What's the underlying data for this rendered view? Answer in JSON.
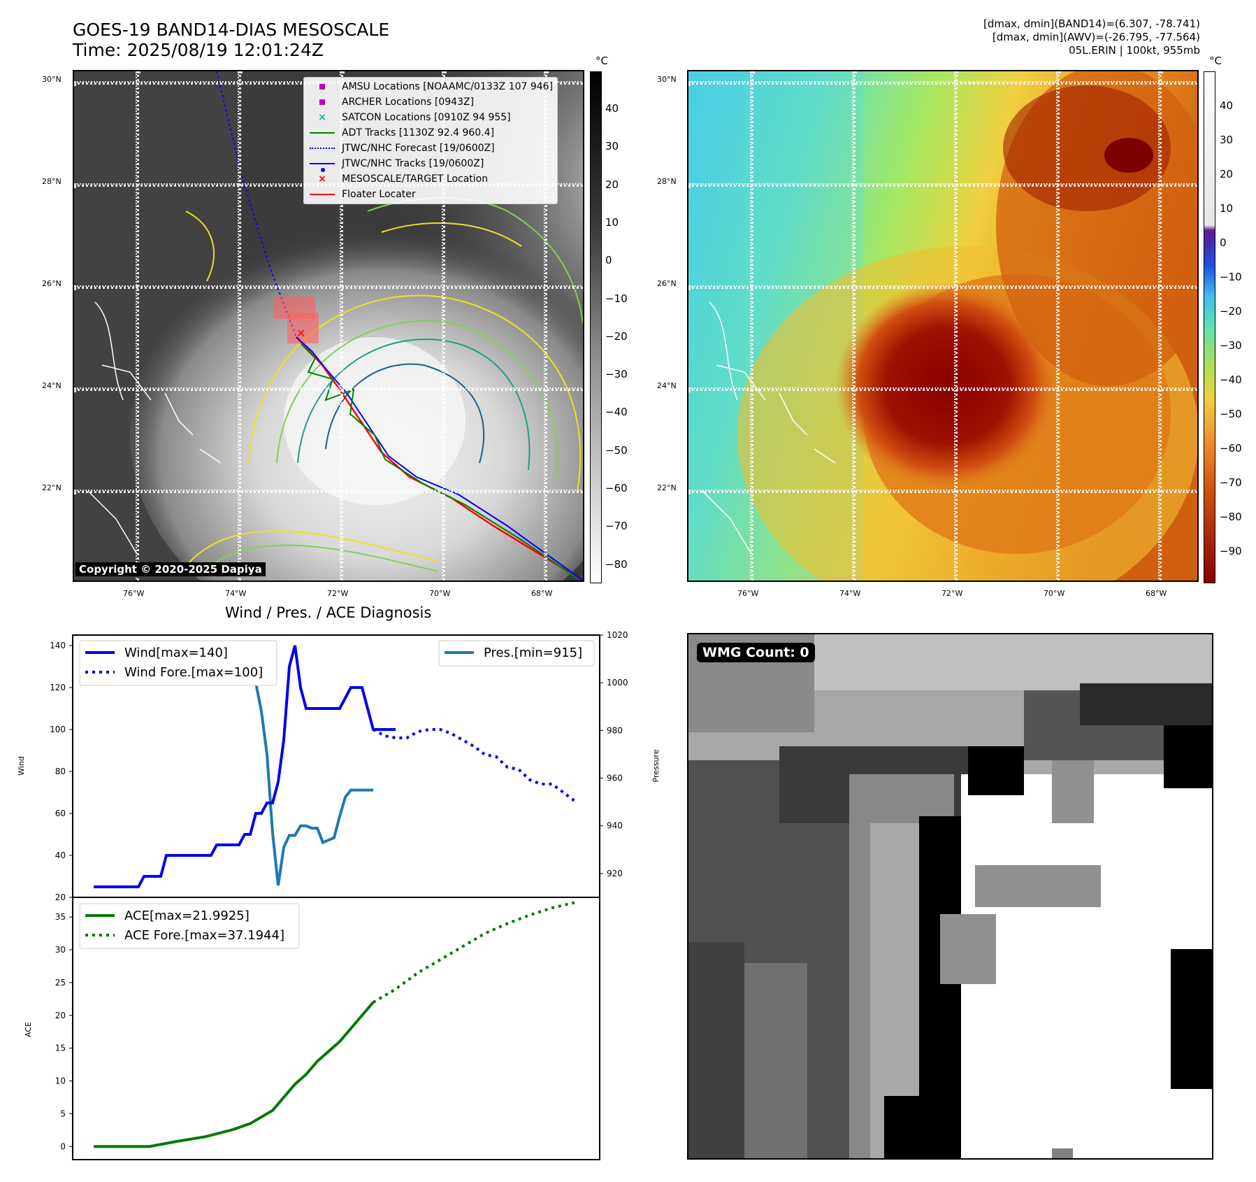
{
  "header": {
    "title_line1": "GOES-19 BAND14-DIAS MESOSCALE",
    "title_line2": "Time: 2025/08/19 12:01:24Z",
    "right_line1": "[dmax, dmin](BAND14)=(6.307, -78.741)",
    "right_line2": "[dmax, dmin](AWV)=(-26.795, -77.564)",
    "right_line3": "05L.ERIN | 100kt, 955mb"
  },
  "map": {
    "lat_labels": [
      "30°N",
      "28°N",
      "26°N",
      "24°N",
      "22°N"
    ],
    "lon_labels": [
      "76°W",
      "74°W",
      "72°W",
      "70°W",
      "68°W"
    ],
    "copyright": "Copyright © 2020-2025 Dapiya",
    "unit": "°C"
  },
  "ir_colorbar": {
    "ticks": [
      "40",
      "30",
      "20",
      "10",
      "0",
      "−10",
      "−20",
      "−30",
      "−40",
      "−50",
      "−60",
      "−70",
      "−80"
    ]
  },
  "wv_colorbar": {
    "ticks": [
      "40",
      "30",
      "20",
      "10",
      "0",
      "−10",
      "−20",
      "−30",
      "−40",
      "−50",
      "−60",
      "−70",
      "−80",
      "−90"
    ]
  },
  "map_legend": {
    "items": [
      {
        "label": "AMSU Locations [NOAAMC/0133Z 107 946]",
        "icon": "magenta-square",
        "color": "#c000c0"
      },
      {
        "label": "ARCHER Locations [0943Z]",
        "icon": "magenta-square",
        "color": "#c000c0"
      },
      {
        "label": "SATCON Locations [0910Z 94 955]",
        "icon": "teal-x",
        "color": "#1ab0a8"
      },
      {
        "label": "ADT Tracks [1130Z 92.4 960.4]",
        "icon": "green-line",
        "color": "#008000"
      },
      {
        "label": "JTWC/NHC Forecast [19/0600Z]",
        "icon": "blue-dotted-line",
        "color": "#0000ff"
      },
      {
        "label": "JTWC/NHC Tracks [19/0600Z]",
        "icon": "blue-dot-line",
        "color": "#0000ff"
      },
      {
        "label": "MESOSCALE/TARGET Location",
        "icon": "red-x",
        "color": "#ff0000"
      },
      {
        "label": "Floater Locater",
        "icon": "red-line",
        "color": "#ff0000"
      }
    ]
  },
  "diagnosis": {
    "title": "Wind / Pres. / ACE Diagnosis",
    "wind_legend": [
      "Wind[max=140]",
      "Wind Fore.[max=100]"
    ],
    "pres_legend": "Pres.[min=915]",
    "ace_legend": [
      "ACE[max=21.9925]",
      "ACE Fore.[max=37.1944]"
    ],
    "wind_ylabel": "Wind",
    "pres_ylabel": "Pressure",
    "ace_ylabel": "ACE",
    "wind_ticks": [
      "140",
      "120",
      "100",
      "80",
      "60",
      "40",
      "20"
    ],
    "pres_ticks": [
      "1020",
      "1000",
      "980",
      "960",
      "940",
      "920"
    ],
    "ace_ticks": [
      "35",
      "30",
      "25",
      "20",
      "15",
      "10",
      "5",
      "0"
    ]
  },
  "wmg": {
    "label": "WMG Count: 0"
  },
  "colors": {
    "wind": "#0000ee",
    "pressure": "#1f77b4",
    "ace": "#007a00"
  },
  "chart_data": [
    {
      "type": "line",
      "title": "",
      "xlabel": "",
      "ylabel": "Wind",
      "ylim": [
        20,
        145
      ],
      "series": [
        {
          "name": "Wind[max=140]",
          "x": [
            0,
            1,
            2,
            3,
            4,
            5,
            6,
            7,
            8,
            9,
            10,
            11,
            12,
            13,
            14,
            15,
            16,
            17,
            18,
            19,
            20,
            21,
            22,
            23,
            24,
            25,
            26,
            27,
            28,
            29,
            30,
            31,
            32,
            33,
            34,
            35,
            36,
            37,
            38,
            39,
            40,
            41,
            42,
            43,
            44,
            45,
            46,
            47,
            48,
            49,
            50,
            51,
            52,
            53,
            54
          ],
          "y": [
            25,
            25,
            25,
            25,
            25,
            25,
            25,
            25,
            25,
            30,
            30,
            30,
            30,
            40,
            40,
            40,
            40,
            40,
            40,
            40,
            40,
            40,
            45,
            45,
            45,
            45,
            45,
            50,
            50,
            60,
            60,
            65,
            65,
            75,
            95,
            130,
            140,
            120,
            110,
            110,
            110,
            110,
            110,
            110,
            110,
            115,
            120,
            120,
            120,
            110,
            100,
            100,
            100,
            100,
            100
          ]
        },
        {
          "name": "Wind Fore.[max=100]",
          "x": [
            50,
            52,
            54,
            56,
            58,
            60,
            62,
            64,
            66,
            68,
            70,
            72,
            74,
            76,
            78,
            80,
            82,
            84,
            86
          ],
          "y": [
            100,
            97,
            96,
            96,
            99,
            100,
            100,
            98,
            95,
            92,
            88,
            87,
            82,
            81,
            76,
            74,
            74,
            70,
            66
          ]
        },
        {
          "name": "Pres.[min=915]",
          "axis": "right",
          "x": [
            0,
            1,
            2,
            3,
            4,
            5,
            6,
            7,
            8,
            9,
            10,
            11,
            12,
            13,
            14,
            15,
            16,
            17,
            18,
            19,
            20,
            21,
            22,
            23,
            24,
            25,
            26,
            27,
            28,
            29,
            30,
            31,
            32,
            33,
            34,
            35,
            36,
            37,
            38,
            39,
            40,
            41,
            42,
            43,
            44,
            45,
            46,
            47,
            48,
            49,
            50
          ],
          "y": [
            1014,
            1014,
            1011,
            1010,
            1010,
            1010,
            1009,
            1009,
            1009,
            1009,
            1008,
            1008,
            1008,
            1007,
            1007,
            1007,
            1007,
            1006,
            1006,
            1006,
            1006,
            1006,
            1006,
            1004,
            1004,
            1004,
            1004,
            1004,
            1004,
            1000,
            988,
            970,
            937,
            915,
            931,
            936,
            936,
            940,
            940,
            939,
            939,
            933,
            934,
            935,
            944,
            952,
            955,
            955,
            955,
            955,
            955
          ]
        }
      ],
      "pres_ylim": [
        910,
        1020
      ]
    },
    {
      "type": "line",
      "title": "",
      "xlabel": "",
      "ylabel": "ACE",
      "ylim": [
        -2,
        38
      ],
      "series": [
        {
          "name": "ACE[max=21.9925]",
          "x": [
            0,
            5,
            10,
            15,
            20,
            25,
            28,
            30,
            32,
            34,
            36,
            38,
            40,
            42,
            44,
            46,
            48,
            50
          ],
          "y": [
            0,
            0,
            0,
            0.8,
            1.5,
            2.6,
            3.5,
            4.5,
            5.5,
            7.5,
            9.5,
            11,
            13,
            14.5,
            16,
            18,
            20,
            21.99
          ]
        },
        {
          "name": "ACE Fore.[max=37.1944]",
          "x": [
            50,
            54,
            58,
            62,
            66,
            70,
            74,
            78,
            82,
            86
          ],
          "y": [
            21.99,
            24,
            26.5,
            28.5,
            30.5,
            32.5,
            34,
            35.3,
            36.4,
            37.19
          ]
        }
      ]
    }
  ]
}
